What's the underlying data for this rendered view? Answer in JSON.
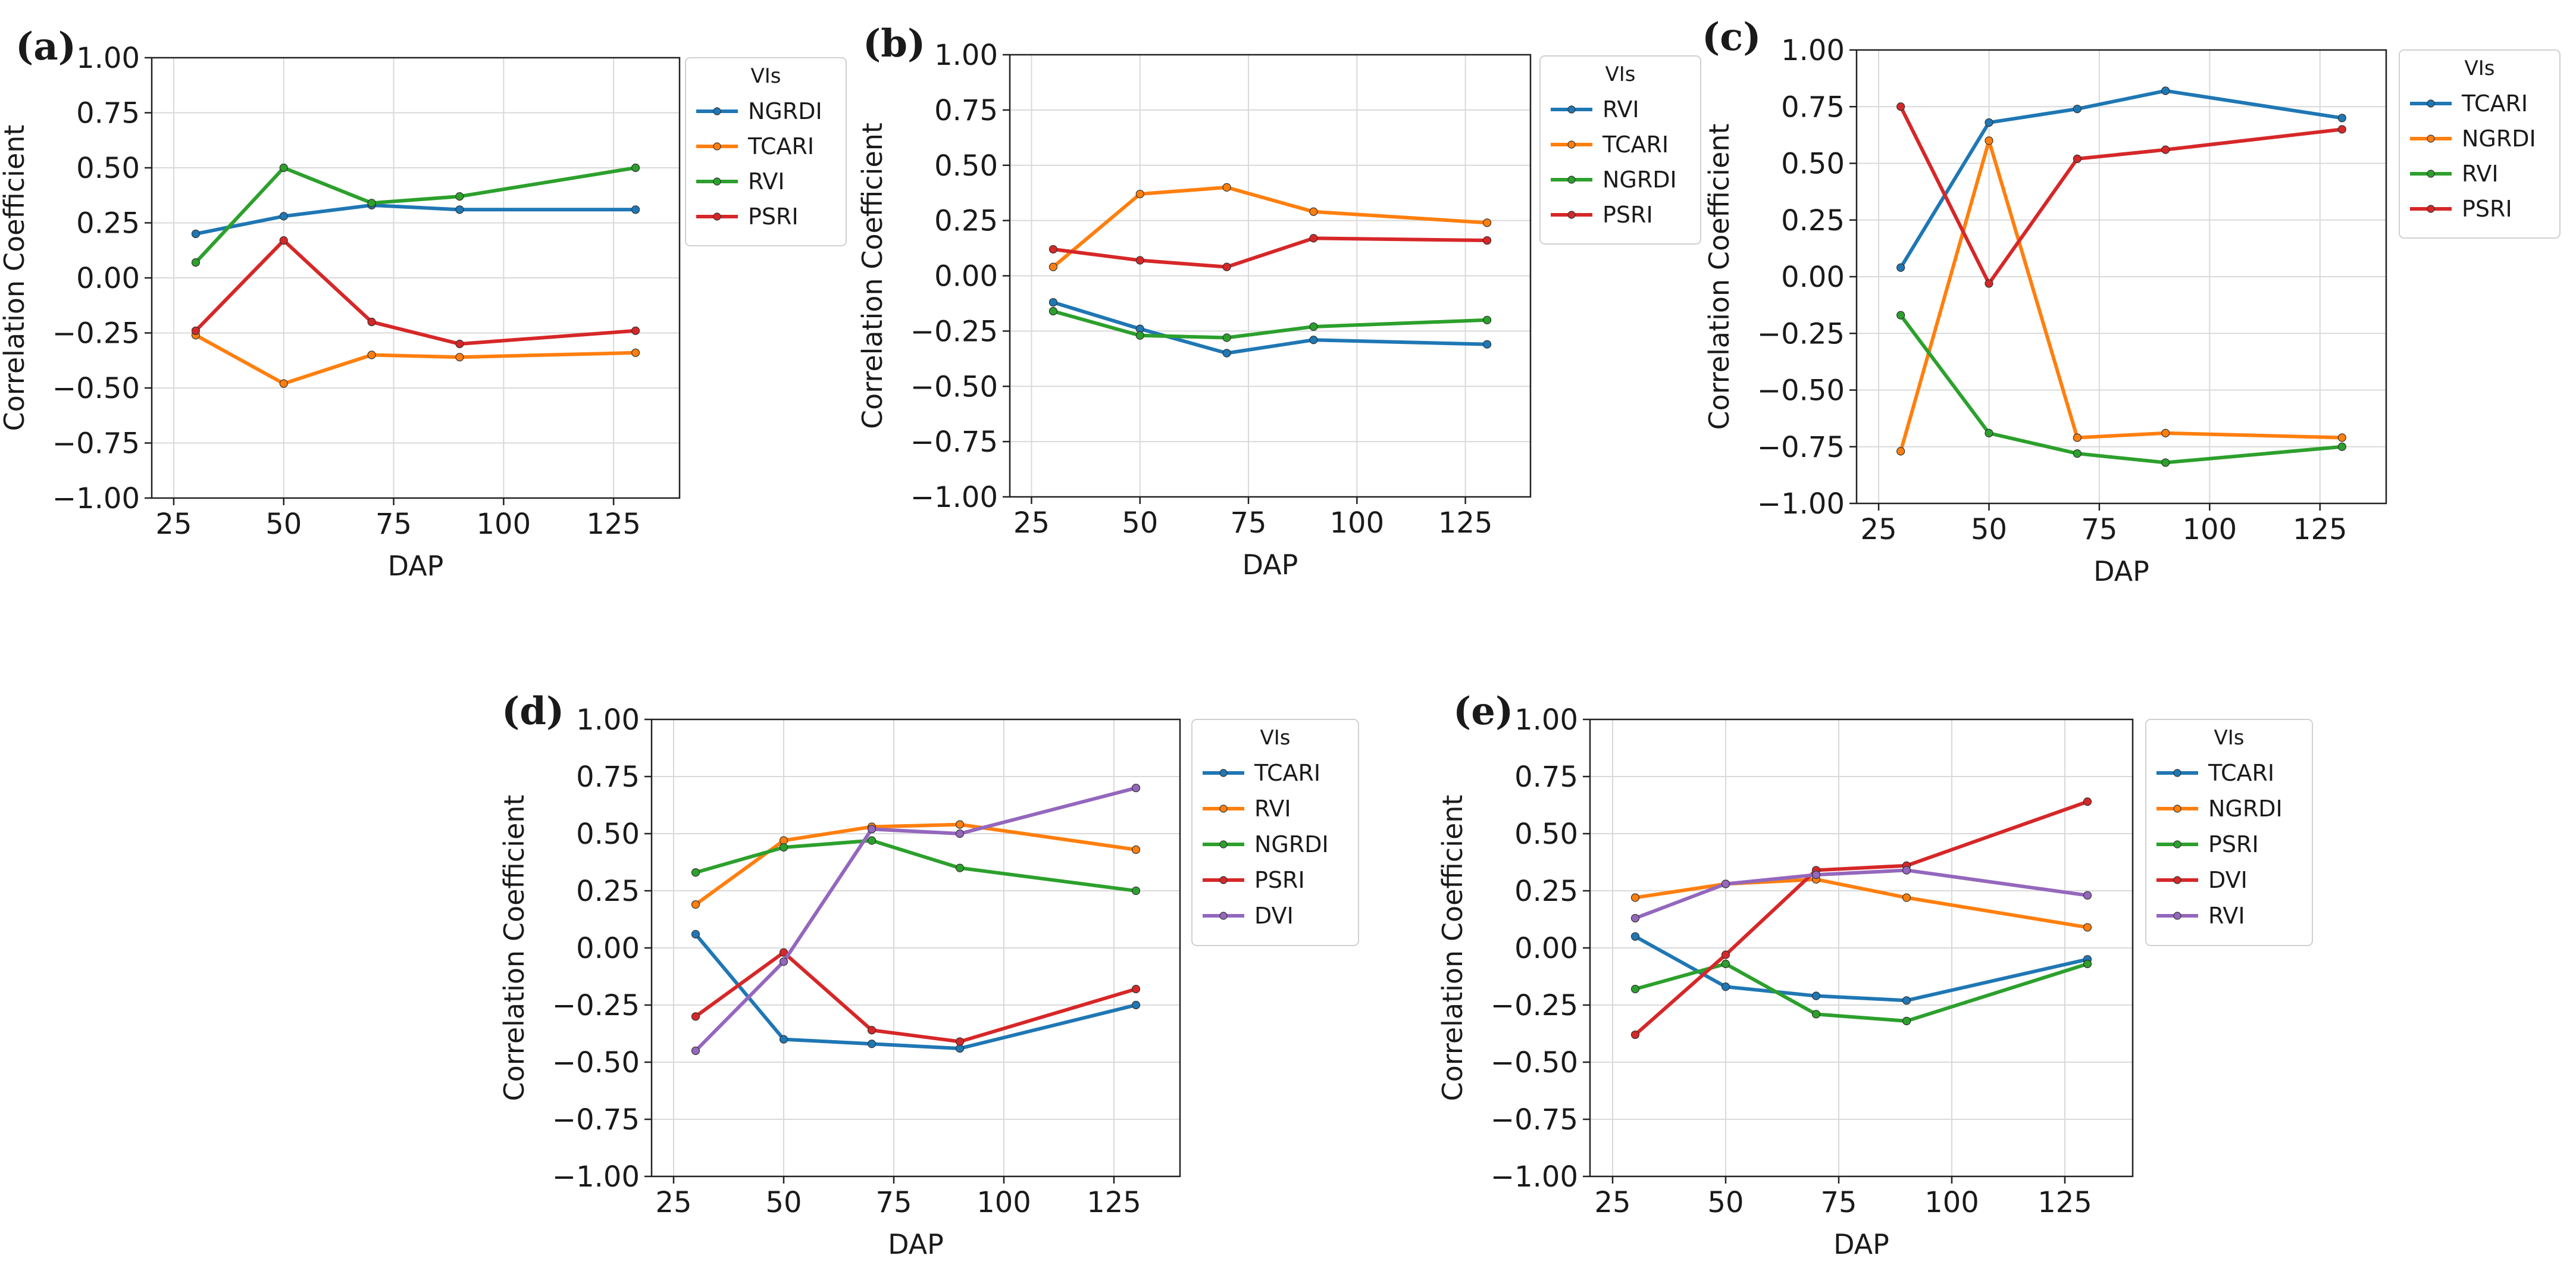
{
  "chart_data": [
    {
      "type": "line",
      "panel_label": "(a)",
      "xlabel": "DAP",
      "ylabel": "Correlation Coefficient",
      "xlim": [
        20,
        140
      ],
      "ylim": [
        -1.0,
        1.0
      ],
      "xticks": [
        25,
        50,
        75,
        100,
        125
      ],
      "xtick_labels": [
        "25",
        "50",
        "75",
        "100",
        "125"
      ],
      "yticks": [
        1.0,
        0.75,
        0.5,
        0.25,
        0.0,
        -0.25,
        -0.5,
        -0.75,
        -1.0
      ],
      "ytick_labels": [
        "1.00",
        "0.75",
        "0.50",
        "0.25",
        "0.00",
        "−0.25",
        "−0.50",
        "−0.75",
        "−1.00"
      ],
      "grid": true,
      "legend_title": "VIs",
      "x": [
        30,
        50,
        70,
        90,
        130
      ],
      "series": [
        {
          "name": "NGRDI",
          "color": "#1f77b4",
          "values": [
            0.2,
            0.28,
            0.33,
            0.31,
            0.31
          ]
        },
        {
          "name": "TCARI",
          "color": "#ff7f0e",
          "values": [
            -0.26,
            -0.48,
            -0.35,
            -0.36,
            -0.34
          ]
        },
        {
          "name": "RVI",
          "color": "#2ca02c",
          "values": [
            0.07,
            0.5,
            0.34,
            0.37,
            0.5
          ]
        },
        {
          "name": "PSRI",
          "color": "#d62728",
          "values": [
            -0.24,
            0.17,
            -0.2,
            -0.3,
            -0.24
          ]
        }
      ]
    },
    {
      "type": "line",
      "panel_label": "(b)",
      "xlabel": "DAP",
      "ylabel": "Correlation Coefficient",
      "xlim": [
        20,
        140
      ],
      "ylim": [
        -1.0,
        1.0
      ],
      "xticks": [
        25,
        50,
        75,
        100,
        125
      ],
      "xtick_labels": [
        "25",
        "50",
        "75",
        "100",
        "125"
      ],
      "yticks": [
        1.0,
        0.75,
        0.5,
        0.25,
        0.0,
        -0.25,
        -0.5,
        -0.75,
        -1.0
      ],
      "ytick_labels": [
        "1.00",
        "0.75",
        "0.50",
        "0.25",
        "0.00",
        "−0.25",
        "−0.50",
        "−0.75",
        "−1.00"
      ],
      "grid": true,
      "legend_title": "VIs",
      "x": [
        30,
        50,
        70,
        90,
        130
      ],
      "series": [
        {
          "name": "RVI",
          "color": "#1f77b4",
          "values": [
            -0.12,
            -0.24,
            -0.35,
            -0.29,
            -0.31
          ]
        },
        {
          "name": "TCARI",
          "color": "#ff7f0e",
          "values": [
            0.04,
            0.37,
            0.4,
            0.29,
            0.24
          ]
        },
        {
          "name": "NGRDI",
          "color": "#2ca02c",
          "values": [
            -0.16,
            -0.27,
            -0.28,
            -0.23,
            -0.2
          ]
        },
        {
          "name": "PSRI",
          "color": "#d62728",
          "values": [
            0.12,
            0.07,
            0.04,
            0.17,
            0.16
          ]
        }
      ]
    },
    {
      "type": "line",
      "panel_label": "(c)",
      "xlabel": "DAP",
      "ylabel": "Correlation Coefficient",
      "xlim": [
        20,
        140
      ],
      "ylim": [
        -1.0,
        1.0
      ],
      "xticks": [
        25,
        50,
        75,
        100,
        125
      ],
      "xtick_labels": [
        "25",
        "50",
        "75",
        "100",
        "125"
      ],
      "yticks": [
        1.0,
        0.75,
        0.5,
        0.25,
        0.0,
        -0.25,
        -0.5,
        -0.75,
        -1.0
      ],
      "ytick_labels": [
        "1.00",
        "0.75",
        "0.50",
        "0.25",
        "0.00",
        "−0.25",
        "−0.50",
        "−0.75",
        "−1.00"
      ],
      "grid": true,
      "legend_title": "VIs",
      "x": [
        30,
        50,
        70,
        90,
        130
      ],
      "series": [
        {
          "name": "TCARI",
          "color": "#1f77b4",
          "values": [
            0.04,
            0.68,
            0.74,
            0.82,
            0.7
          ]
        },
        {
          "name": "NGRDI",
          "color": "#ff7f0e",
          "values": [
            -0.77,
            0.6,
            -0.71,
            -0.69,
            -0.71
          ]
        },
        {
          "name": "RVI",
          "color": "#2ca02c",
          "values": [
            -0.17,
            -0.69,
            -0.78,
            -0.82,
            -0.75
          ]
        },
        {
          "name": "PSRI",
          "color": "#d62728",
          "values": [
            0.75,
            -0.03,
            0.52,
            0.56,
            0.65
          ]
        }
      ]
    },
    {
      "type": "line",
      "panel_label": "(d)",
      "xlabel": "DAP",
      "ylabel": "Correlation Coefficient",
      "xlim": [
        20,
        140
      ],
      "ylim": [
        -1.0,
        1.0
      ],
      "xticks": [
        25,
        50,
        75,
        100,
        125
      ],
      "xtick_labels": [
        "25",
        "50",
        "75",
        "100",
        "125"
      ],
      "yticks": [
        1.0,
        0.75,
        0.5,
        0.25,
        0.0,
        -0.25,
        -0.5,
        -0.75,
        -1.0
      ],
      "ytick_labels": [
        "1.00",
        "0.75",
        "0.50",
        "0.25",
        "0.00",
        "−0.25",
        "−0.50",
        "−0.75",
        "−1.00"
      ],
      "grid": true,
      "legend_title": "VIs",
      "x": [
        30,
        50,
        70,
        90,
        130
      ],
      "series": [
        {
          "name": "TCARI",
          "color": "#1f77b4",
          "values": [
            0.06,
            -0.4,
            -0.42,
            -0.44,
            -0.25
          ]
        },
        {
          "name": "RVI",
          "color": "#ff7f0e",
          "values": [
            0.19,
            0.47,
            0.53,
            0.54,
            0.43
          ]
        },
        {
          "name": "NGRDI",
          "color": "#2ca02c",
          "values": [
            0.33,
            0.44,
            0.47,
            0.35,
            0.25
          ]
        },
        {
          "name": "PSRI",
          "color": "#d62728",
          "values": [
            -0.3,
            -0.02,
            -0.36,
            -0.41,
            -0.18
          ]
        },
        {
          "name": "DVI",
          "color": "#9467bd",
          "values": [
            -0.45,
            -0.06,
            0.52,
            0.5,
            0.7
          ]
        }
      ]
    },
    {
      "type": "line",
      "panel_label": "(e)",
      "xlabel": "DAP",
      "ylabel": "Correlation Coefficient",
      "xlim": [
        20,
        140
      ],
      "ylim": [
        -1.0,
        1.0
      ],
      "xticks": [
        25,
        50,
        75,
        100,
        125
      ],
      "xtick_labels": [
        "25",
        "50",
        "75",
        "100",
        "125"
      ],
      "yticks": [
        1.0,
        0.75,
        0.5,
        0.25,
        0.0,
        -0.25,
        -0.5,
        -0.75,
        -1.0
      ],
      "ytick_labels": [
        "1.00",
        "0.75",
        "0.50",
        "0.25",
        "0.00",
        "−0.25",
        "−0.50",
        "−0.75",
        "−1.00"
      ],
      "grid": true,
      "legend_title": "VIs",
      "x": [
        30,
        50,
        70,
        90,
        130
      ],
      "series": [
        {
          "name": "TCARI",
          "color": "#1f77b4",
          "values": [
            0.05,
            -0.17,
            -0.21,
            -0.23,
            -0.05
          ]
        },
        {
          "name": "NGRDI",
          "color": "#ff7f0e",
          "values": [
            0.22,
            0.28,
            0.3,
            0.22,
            0.09
          ]
        },
        {
          "name": "PSRI",
          "color": "#2ca02c",
          "values": [
            -0.18,
            -0.07,
            -0.29,
            -0.32,
            -0.07
          ]
        },
        {
          "name": "DVI",
          "color": "#d62728",
          "values": [
            -0.38,
            -0.03,
            0.34,
            0.36,
            0.64
          ]
        },
        {
          "name": "RVI",
          "color": "#9467bd",
          "values": [
            0.13,
            0.28,
            0.32,
            0.34,
            0.23
          ]
        }
      ]
    }
  ]
}
